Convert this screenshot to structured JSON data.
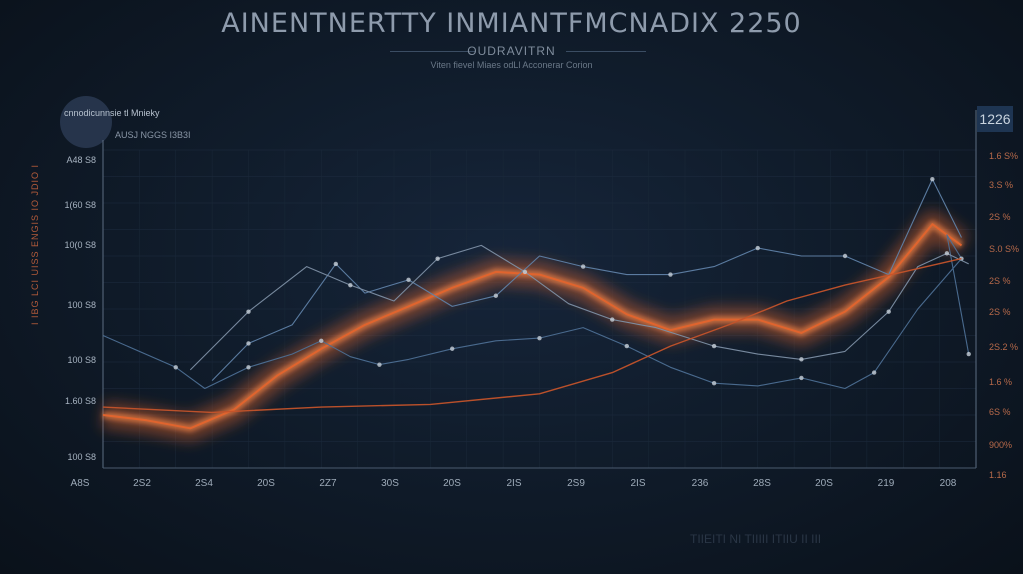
{
  "chart_data": {
    "type": "line",
    "title": "AINENTNERTTY INMIANTFMCNADIX 2250",
    "subtitle": "OUDRAVITRN",
    "caption": "Viten fievel Miaes odLl Acconerar Corion",
    "legend": {
      "title": "cnnodicunnsie tl Mnieky",
      "subtitle": "AUSJ NGGS I3B3I",
      "placement": "top-left"
    },
    "badge": "1226",
    "side_label": "I IBG LCI UISS ENGIS IO JDIO I",
    "y_ticks_left": [
      "A48 S8",
      "1(60 S8",
      "10(0 S8",
      "100 S8",
      "100 S8",
      "1.60 S8",
      "100 S8"
    ],
    "y_ticks_right": [
      "1.6 S%",
      "3.S %",
      "2S %",
      "S.0 S%",
      "2S %",
      "2S %",
      "2S.2 %",
      "1.6 %",
      "6S %",
      "900%",
      "1.16"
    ],
    "x_ticks": [
      "A8S",
      "2S2",
      "2S4",
      "20S",
      "2Z7",
      "30S",
      "20S",
      "2IS",
      "2S9",
      "2IS",
      "236",
      "28S",
      "20S",
      "219",
      "208"
    ],
    "grid": true,
    "series": [
      {
        "color": "#e0642e",
        "points": [
          [
            0,
            2.0
          ],
          [
            0.6,
            1.8
          ],
          [
            1.2,
            1.5
          ],
          [
            1.8,
            2.2
          ],
          [
            2.4,
            3.5
          ],
          [
            3.0,
            4.5
          ],
          [
            3.6,
            5.4
          ],
          [
            4.2,
            6.1
          ],
          [
            4.8,
            6.8
          ],
          [
            5.4,
            7.4
          ],
          [
            6.0,
            7.3
          ],
          [
            6.6,
            6.8
          ],
          [
            7.2,
            5.8
          ],
          [
            7.8,
            5.2
          ],
          [
            8.4,
            5.6
          ],
          [
            9.0,
            5.6
          ],
          [
            9.6,
            5.1
          ],
          [
            10.2,
            5.9
          ],
          [
            10.8,
            7.2
          ],
          [
            11.4,
            9.2
          ],
          [
            11.8,
            8.4
          ]
        ]
      },
      {
        "color": "#4d6f94",
        "points": [
          [
            0,
            5.0
          ],
          [
            1.0,
            3.8
          ],
          [
            1.4,
            3.0
          ],
          [
            2.0,
            3.8
          ],
          [
            2.6,
            4.3
          ],
          [
            3.0,
            4.8
          ],
          [
            3.4,
            4.2
          ],
          [
            3.8,
            3.9
          ],
          [
            4.2,
            4.1
          ],
          [
            4.8,
            4.5
          ],
          [
            5.4,
            4.8
          ],
          [
            6.0,
            4.9
          ],
          [
            6.6,
            5.3
          ],
          [
            7.2,
            4.6
          ],
          [
            7.8,
            3.8
          ],
          [
            8.4,
            3.2
          ],
          [
            9.0,
            3.1
          ],
          [
            9.6,
            3.4
          ],
          [
            10.2,
            3.0
          ],
          [
            10.6,
            3.6
          ],
          [
            11.2,
            6.0
          ],
          [
            11.8,
            7.9
          ],
          [
            11.6,
            8.8
          ],
          [
            11.9,
            4.3
          ]
        ]
      },
      {
        "color": "#5f81a6",
        "points": [
          [
            1.5,
            3.3
          ],
          [
            2.0,
            4.7
          ],
          [
            2.6,
            5.4
          ],
          [
            3.2,
            7.7
          ],
          [
            3.6,
            6.6
          ],
          [
            4.2,
            7.1
          ],
          [
            4.8,
            6.1
          ],
          [
            5.4,
            6.5
          ],
          [
            6.0,
            8.0
          ],
          [
            6.6,
            7.6
          ],
          [
            7.2,
            7.3
          ],
          [
            7.8,
            7.3
          ],
          [
            8.4,
            7.6
          ],
          [
            9.0,
            8.3
          ],
          [
            9.6,
            8.0
          ],
          [
            10.2,
            8.0
          ],
          [
            10.8,
            7.3
          ],
          [
            11.4,
            10.9
          ],
          [
            11.8,
            8.7
          ]
        ]
      },
      {
        "color": "#7d8fa4",
        "points": [
          [
            1.2,
            3.7
          ],
          [
            2.0,
            5.9
          ],
          [
            2.8,
            7.6
          ],
          [
            3.4,
            6.9
          ],
          [
            4.0,
            6.3
          ],
          [
            4.6,
            7.9
          ],
          [
            5.2,
            8.4
          ],
          [
            5.8,
            7.4
          ],
          [
            6.4,
            6.2
          ],
          [
            7.0,
            5.6
          ],
          [
            7.6,
            5.3
          ],
          [
            8.4,
            4.6
          ],
          [
            9.0,
            4.3
          ],
          [
            9.6,
            4.1
          ],
          [
            10.2,
            4.4
          ],
          [
            10.8,
            5.9
          ],
          [
            11.2,
            7.6
          ],
          [
            11.6,
            8.1
          ],
          [
            11.9,
            7.7
          ]
        ]
      },
      {
        "color": "#c4532a",
        "points": [
          [
            0,
            2.3
          ],
          [
            1.5,
            2.1
          ],
          [
            3.0,
            2.3
          ],
          [
            4.5,
            2.4
          ],
          [
            6.0,
            2.8
          ],
          [
            7.0,
            3.6
          ],
          [
            7.8,
            4.6
          ],
          [
            8.6,
            5.4
          ],
          [
            9.4,
            6.3
          ],
          [
            10.2,
            6.9
          ],
          [
            11.0,
            7.4
          ],
          [
            11.8,
            7.9
          ]
        ]
      }
    ],
    "xlim": [
      0,
      12
    ],
    "ylim": [
      0,
      12
    ]
  },
  "bottom_text": "TIIEITI NI TIIIII ITIIU II III"
}
